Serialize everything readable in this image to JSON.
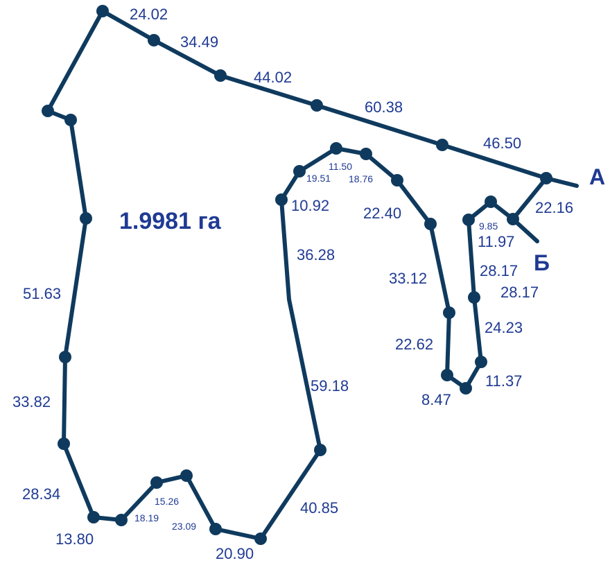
{
  "area_label": "1.9981 га",
  "point_a": "А",
  "point_b": "Б",
  "segment_lengths": [
    "24.02",
    "34.49",
    "44.02",
    "60.38",
    "46.50",
    "22.16",
    "9.85",
    "11.97",
    "28.17",
    "28.17",
    "24.23",
    "11.37",
    "8.47",
    "22.62",
    "33.12",
    "22.40",
    "18.76",
    "11.50",
    "19.51",
    "10.92",
    "36.28",
    "59.18",
    "40.85",
    "20.90",
    "23.09",
    "15.26",
    "18.19",
    "13.80",
    "28.34",
    "33.82",
    "51.63"
  ],
  "colors": {
    "line": "#0f3a5e",
    "text": "#1f3a93"
  }
}
